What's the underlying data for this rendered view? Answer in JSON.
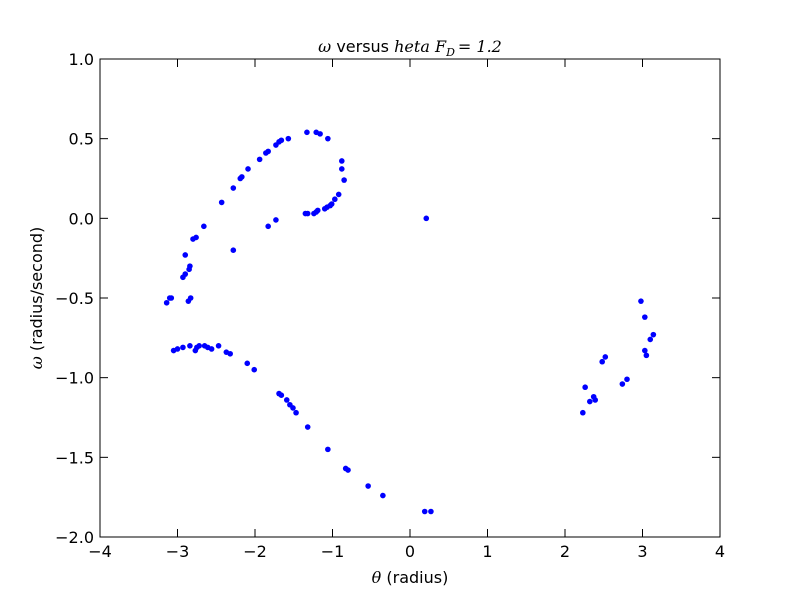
{
  "chart_data": {
    "type": "scatter",
    "title_parts": [
      "ω",
      "versus",
      "heta",
      "F",
      "D",
      "= 1.2"
    ],
    "xlabel_symbol": "θ",
    "xlabel": "(radius)",
    "ylabel_symbol": "ω",
    "ylabel": "(radius/second)",
    "color": "#0000ff",
    "xlim": [
      -4,
      4
    ],
    "ylim": [
      -2,
      1
    ],
    "xticks": [
      {
        "value": -4,
        "label": "−4"
      },
      {
        "value": -3,
        "label": "−3"
      },
      {
        "value": -2,
        "label": "−2"
      },
      {
        "value": -1,
        "label": "−1"
      },
      0,
      1,
      2,
      3,
      4
    ],
    "yticks": [
      {
        "value": -2,
        "label": "−2.0"
      },
      {
        "value": -1.5,
        "label": "−1.5"
      },
      {
        "value": -1,
        "label": "−1.0"
      },
      {
        "value": -0.5,
        "label": "−0.5"
      },
      {
        "value": 0,
        "label": "0.0"
      },
      {
        "value": 0.5,
        "label": "0.5"
      },
      {
        "value": 1,
        "label": "1.0"
      }
    ],
    "x": [
      -3.14,
      -3.1,
      -3.08,
      -2.93,
      -2.9,
      -2.9,
      -2.85,
      -2.84,
      -2.86,
      -2.83,
      -2.8,
      -2.76,
      -2.66,
      -2.43,
      -2.28,
      -2.19,
      -2.17,
      -2.09,
      -1.94,
      -1.86,
      -1.83,
      -1.73,
      -1.69,
      -1.66,
      -1.57,
      -1.33,
      -1.21,
      -1.16,
      -1.06,
      -0.88,
      -0.88,
      -0.85,
      -0.92,
      -0.97,
      -1.01,
      -1.03,
      -1.1,
      -1.07,
      -1.19,
      -1.21,
      -1.24,
      -1.35,
      -1.32,
      -1.73,
      -1.83,
      -2.28,
      0.21,
      -3.05,
      -3.0,
      -2.93,
      -2.84,
      -2.77,
      -2.75,
      -2.72,
      -2.65,
      -2.61,
      -2.56,
      -2.47,
      -2.37,
      -2.32,
      -2.1,
      -2.01,
      -1.69,
      -1.66,
      -1.59,
      -1.55,
      -1.51,
      -1.47,
      -1.32,
      -1.06,
      -0.83,
      -0.8,
      -0.54,
      -0.35,
      0.19,
      0.27,
      2.23,
      2.26,
      2.32,
      2.37,
      2.39,
      2.48,
      2.52,
      2.74,
      2.8,
      2.98,
      3.03,
      3.03,
      3.05,
      3.1,
      3.14
    ],
    "values": [
      -0.53,
      -0.5,
      -0.5,
      -0.37,
      -0.35,
      -0.23,
      -0.32,
      -0.3,
      -0.52,
      -0.5,
      -0.13,
      -0.12,
      -0.05,
      0.1,
      0.19,
      0.25,
      0.26,
      0.31,
      0.37,
      0.41,
      0.42,
      0.46,
      0.48,
      0.49,
      0.5,
      0.54,
      0.54,
      0.53,
      0.5,
      0.36,
      0.31,
      0.24,
      0.15,
      0.12,
      0.09,
      0.08,
      0.06,
      0.07,
      0.05,
      0.04,
      0.03,
      0.03,
      0.03,
      -0.01,
      -0.05,
      -0.2,
      0.0,
      -0.83,
      -0.82,
      -0.81,
      -0.8,
      -0.83,
      -0.81,
      -0.8,
      -0.8,
      -0.81,
      -0.82,
      -0.8,
      -0.84,
      -0.85,
      -0.91,
      -0.95,
      -1.1,
      -1.11,
      -1.14,
      -1.17,
      -1.19,
      -1.22,
      -1.31,
      -1.45,
      -1.57,
      -1.58,
      -1.68,
      -1.74,
      -1.84,
      -1.84,
      -1.22,
      -1.06,
      -1.15,
      -1.12,
      -1.14,
      -0.9,
      -0.87,
      -1.04,
      -1.01,
      -0.52,
      -0.62,
      -0.83,
      -0.86,
      -0.76,
      -0.73
    ]
  }
}
